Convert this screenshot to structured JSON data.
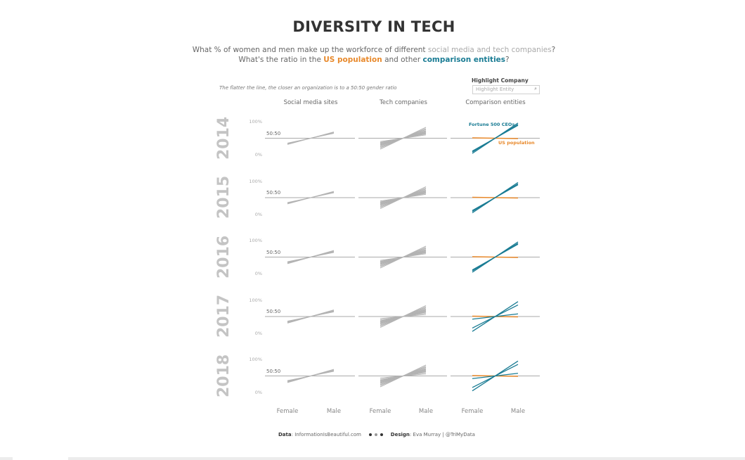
{
  "header": {
    "title": "DIVERSITY IN TECH",
    "subtitle_line1": {
      "prefix": "What % of women and men make up the workforce of different ",
      "highlight": "social media and tech companies",
      "suffix": "?"
    },
    "subtitle_line2": {
      "part1": "What's the ratio in the ",
      "highlight1": "US population",
      "part2": " and other ",
      "highlight2": "comparison entities",
      "suffix": "?"
    },
    "note": "The flatter the line, the closer an organization is to a 50:50 gender ratio"
  },
  "filter": {
    "label": "Highlight Company",
    "placeholder": "Highlight Entity",
    "icon": "search-icon"
  },
  "colors": {
    "grey_lines": "#b3b3b3",
    "us_population": "#e8892b",
    "comparison": "#1a7c94",
    "reference_line": "#aaaaaa"
  },
  "chart_data": {
    "type": "line",
    "title": "DIVERSITY IN TECH",
    "columns": [
      "Social media sites",
      "Tech companies",
      "Comparison entities"
    ],
    "rows": [
      "2014",
      "2015",
      "2016",
      "2017",
      "2018"
    ],
    "x": [
      "Female",
      "Male"
    ],
    "y_ticks": [
      "100%",
      "0%"
    ],
    "ylim": [
      0,
      100
    ],
    "reference_label": "50:50",
    "reference_value": 50,
    "annotations": {
      "fortune": "Fortune 500 CEOs",
      "us": "US population"
    },
    "panels": {
      "2014": {
        "social": [
          [
            31,
            69
          ],
          [
            33,
            67
          ],
          [
            35,
            65
          ]
        ],
        "tech": [
          [
            17,
            83
          ],
          [
            21,
            79
          ],
          [
            24,
            76
          ],
          [
            27,
            73
          ],
          [
            29,
            71
          ],
          [
            31,
            69
          ],
          [
            33,
            67
          ],
          [
            35,
            65
          ],
          [
            37,
            63
          ],
          [
            40,
            60
          ]
        ],
        "us": [
          [
            51,
            49
          ]
        ],
        "comparison": [
          [
            4,
            96
          ],
          [
            8,
            92
          ],
          [
            11,
            89
          ]
        ]
      },
      "2015": {
        "social": [
          [
            31,
            69
          ],
          [
            33,
            67
          ],
          [
            35,
            65
          ]
        ],
        "tech": [
          [
            17,
            83
          ],
          [
            21,
            79
          ],
          [
            24,
            76
          ],
          [
            27,
            73
          ],
          [
            29,
            71
          ],
          [
            31,
            69
          ],
          [
            33,
            67
          ],
          [
            35,
            65
          ],
          [
            37,
            63
          ],
          [
            40,
            60
          ]
        ],
        "us": [
          [
            51,
            49
          ]
        ],
        "comparison": [
          [
            4,
            96
          ],
          [
            8,
            92
          ],
          [
            11,
            89
          ]
        ]
      },
      "2016": {
        "social": [
          [
            30,
            70
          ],
          [
            32,
            68
          ],
          [
            34,
            66
          ],
          [
            36,
            64
          ]
        ],
        "tech": [
          [
            17,
            83
          ],
          [
            21,
            79
          ],
          [
            24,
            76
          ],
          [
            27,
            73
          ],
          [
            29,
            71
          ],
          [
            31,
            69
          ],
          [
            33,
            67
          ],
          [
            35,
            65
          ],
          [
            37,
            63
          ],
          [
            40,
            60
          ]
        ],
        "us": [
          [
            51,
            49
          ]
        ],
        "comparison": [
          [
            4,
            96
          ],
          [
            8,
            92
          ],
          [
            11,
            89
          ]
        ]
      },
      "2017": {
        "social": [
          [
            30,
            70
          ],
          [
            32,
            68
          ],
          [
            34,
            66
          ],
          [
            36,
            64
          ]
        ],
        "tech": [
          [
            17,
            83
          ],
          [
            21,
            79
          ],
          [
            24,
            76
          ],
          [
            27,
            73
          ],
          [
            29,
            71
          ],
          [
            31,
            69
          ],
          [
            33,
            67
          ],
          [
            35,
            65
          ],
          [
            37,
            63
          ],
          [
            40,
            60
          ],
          [
            44,
            56
          ]
        ],
        "us": [
          [
            51,
            49
          ]
        ],
        "comparison": [
          [
            5,
            95
          ],
          [
            15,
            85
          ],
          [
            42,
            58
          ]
        ]
      },
      "2018": {
        "social": [
          [
            30,
            70
          ],
          [
            32,
            68
          ],
          [
            34,
            66
          ],
          [
            36,
            64
          ]
        ],
        "tech": [
          [
            17,
            83
          ],
          [
            21,
            79
          ],
          [
            24,
            76
          ],
          [
            27,
            73
          ],
          [
            29,
            71
          ],
          [
            31,
            69
          ],
          [
            33,
            67
          ],
          [
            35,
            65
          ],
          [
            37,
            63
          ],
          [
            40,
            60
          ],
          [
            44,
            56
          ]
        ],
        "us": [
          [
            51,
            49
          ]
        ],
        "comparison": [
          [
            5,
            95
          ],
          [
            15,
            85
          ],
          [
            42,
            58
          ]
        ]
      }
    }
  },
  "footer": {
    "data_label": "Data",
    "data_value": "InformationIsBeautiful.com",
    "design_label": "Design",
    "design_value": "Eva Murray | @TriMyData"
  }
}
